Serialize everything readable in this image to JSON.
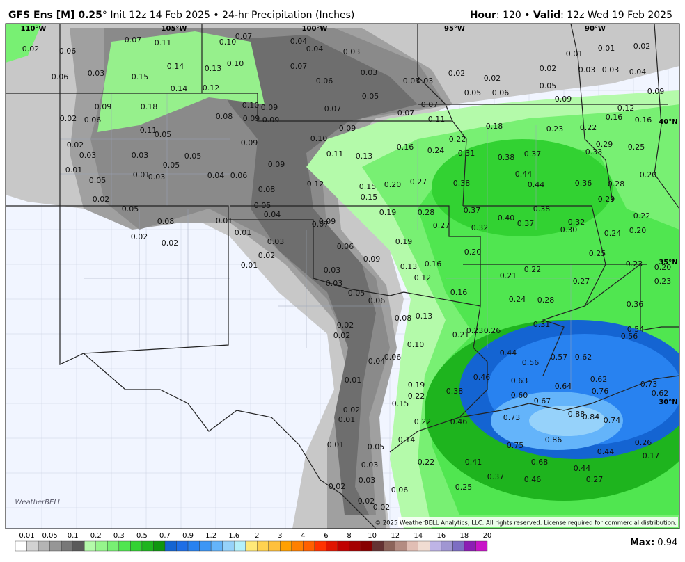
{
  "header": {
    "model": "GFS Ens [M] 0.25",
    "init": "° Init 12z 14 Feb 2025 • 24-hr Precipitation (Inches)",
    "hour_label": "Hour",
    "hour_value": ": 120 • ",
    "valid_label": "Valid",
    "valid_value": ": 12z Wed 19 Feb 2025"
  },
  "map": {
    "longitude_labels": [
      "110°W",
      "105°W",
      "100°W",
      "95°W",
      "90°W"
    ],
    "latitude_labels": [
      "40°N",
      "35°N",
      "30°N"
    ],
    "precip_labels": [
      "0.02",
      "0.06",
      "0.07",
      "0.11",
      "0.10",
      "0.07",
      "0.04",
      "0.04",
      "0.03",
      "0.03",
      "0.06",
      "0.15",
      "0.14",
      "0.13",
      "0.10",
      "0.07",
      "0.06",
      "0.03",
      "0.14",
      "0.12",
      "0.09",
      "0.18",
      "0.10",
      "0.09",
      "0.07",
      "0.05",
      "0.03",
      "0.03",
      "0.02",
      "0.02",
      "0.02",
      "0.03",
      "0.03",
      "0.04",
      "0.01",
      "0.01",
      "0.02",
      "0.05",
      "0.06",
      "0.05",
      "0.09",
      "0.09",
      "0.07",
      "0.07",
      "0.11",
      "0.02",
      "0.06",
      "0.11",
      "0.05",
      "0.08",
      "0.09",
      "0.09",
      "0.09",
      "0.18",
      "0.23",
      "0.22",
      "0.12",
      "0.16",
      "0.16",
      "0.02",
      "0.03",
      "0.03",
      "0.05",
      "0.09",
      "0.10",
      "0.22",
      "0.16",
      "0.24",
      "0.11",
      "0.13",
      "0.31",
      "0.38",
      "0.37",
      "0.33",
      "0.29",
      "0.25",
      "0.01",
      "0.05",
      "0.01",
      "0.03",
      "0.05",
      "0.04",
      "0.06",
      "0.09",
      "0.12",
      "0.15",
      "0.20",
      "0.27",
      "0.38",
      "0.44",
      "0.44",
      "0.36",
      "0.28",
      "0.20",
      "0.08",
      "0.15",
      "0.02",
      "0.05",
      "0.05",
      "0.04",
      "0.19",
      "0.28",
      "0.37",
      "0.38",
      "0.29",
      "0.22",
      "0.08",
      "0.01",
      "0.07",
      "0.09",
      "0.27",
      "0.32",
      "0.40",
      "0.37",
      "0.32",
      "0.30",
      "0.24",
      "0.20",
      "0.02",
      "0.02",
      "0.01",
      "0.03",
      "0.02",
      "0.06",
      "0.19",
      "0.20",
      "0.25",
      "0.01",
      "0.09",
      "0.13",
      "0.16",
      "0.22",
      "0.23",
      "0.20",
      "0.03",
      "0.03",
      "0.12",
      "0.21",
      "0.27",
      "0.23",
      "0.05",
      "0.06",
      "0.16",
      "0.24",
      "0.28",
      "0.36",
      "0.08",
      "0.13",
      "0.31",
      "0.02",
      "0.02",
      "0.21",
      "0.23",
      "0.26",
      "0.54",
      "0.56",
      "0.10",
      "0.44",
      "0.56",
      "0.57",
      "0.62",
      "0.04",
      "0.06",
      "0.46",
      "0.63",
      "0.62",
      "0.01",
      "0.19",
      "0.22",
      "0.64",
      "0.73",
      "0.38",
      "0.60",
      "0.67",
      "0.76",
      "0.62",
      "0.15",
      "0.02",
      "0.01",
      "0.73",
      "0.88",
      "0.84",
      "0.74",
      "0.22",
      "0.46",
      "0.14",
      "0.86",
      "0.75",
      "0.01",
      "0.05",
      "0.26",
      "0.44",
      "0.17",
      "0.22",
      "0.41",
      "0.68",
      "0.03",
      "0.44",
      "0.03",
      "0.37",
      "0.46",
      "0.27",
      "0.02",
      "0.06",
      "0.25",
      "0.02",
      "0.02"
    ],
    "logo": "WeatherBELL",
    "copyright": "© 2025 WeatherBELL Analytics, LLC. All rights reserved. License required for commercial distribution."
  },
  "colorbar": {
    "labels": [
      "0.01",
      "0.05",
      "0.1",
      "0.2",
      "0.3",
      "0.5",
      "0.7",
      "0.9",
      "1.2",
      "1.6",
      "2",
      "3",
      "4",
      "6",
      "8",
      "10",
      "12",
      "14",
      "16",
      "18",
      "20"
    ],
    "colors": [
      "#ffffff",
      "#d2d2d2",
      "#b4b4b4",
      "#969696",
      "#787878",
      "#5a5a5a",
      "#b4faaa",
      "#96f58c",
      "#78f073",
      "#50e650",
      "#32d232",
      "#1eb41e",
      "#0f960f",
      "#1464d2",
      "#1e6ee6",
      "#2882f0",
      "#3c96f5",
      "#64b4fa",
      "#96d2fa",
      "#b4f0fa",
      "#ffe978",
      "#ffd250",
      "#ffc03c",
      "#ffa000",
      "#ff8000",
      "#ff6000",
      "#ff3200",
      "#e11400",
      "#c00000",
      "#a50000",
      "#870000",
      "#643232",
      "#8c645a",
      "#b48c82",
      "#e1beb4",
      "#f0dcd2",
      "#beb4e6",
      "#a096d2",
      "#7d6ec3",
      "#8c1eb4",
      "#c814c8"
    ]
  },
  "max": {
    "label": "Max:",
    "value": "0.94"
  }
}
